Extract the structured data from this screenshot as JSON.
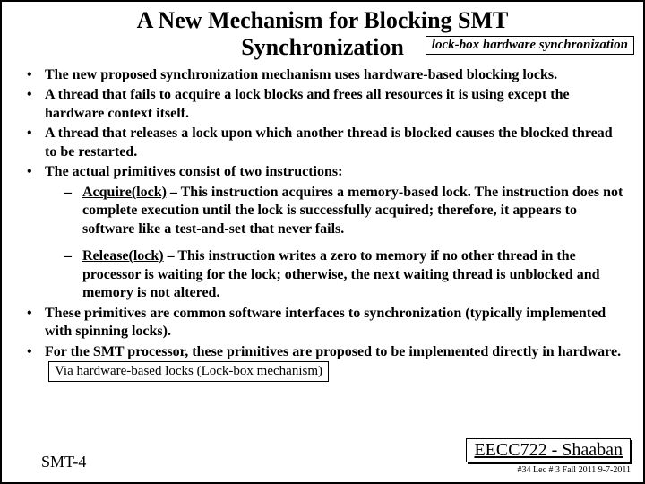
{
  "title": {
    "line1": "A New Mechanism for Blocking SMT",
    "line2": "Synchronization",
    "badge": "lock-box hardware synchronization"
  },
  "bullets": {
    "b1": "The new proposed synchronization mechanism uses hardware-based blocking locks.",
    "b2": "A thread that fails to acquire a lock blocks and frees all resources it is using except the hardware context itself.",
    "b3": "A thread that releases a lock upon which another thread is blocked causes the blocked thread to be restarted.",
    "b4lead": "The actual primitives consist of two instructions:",
    "s1name": "Acquire(lock)",
    "s1rest": " – This instruction acquires a memory-based lock. The instruction does not complete execution until the lock is successfully acquired; therefore, it appears to software like a test-and-set that never fails.",
    "s2name": "Release(lock)",
    "s2rest": " – This instruction writes a zero to memory if no other thread in the processor is waiting for the lock; otherwise, the next waiting thread is unblocked and memory is not altered.",
    "b5": "These primitives are common software interfaces to synchronization (typically implemented with spinning locks).",
    "b6lead": "For the SMT processor, these primitives are proposed to be implemented directly in hardware.",
    "viabox": "Via hardware-based locks (Lock-box mechanism)"
  },
  "footer": {
    "left": "SMT-4",
    "course": "EECC722 - Shaaban",
    "meta": "#34  Lec # 3   Fall 2011  9-7-2011"
  }
}
